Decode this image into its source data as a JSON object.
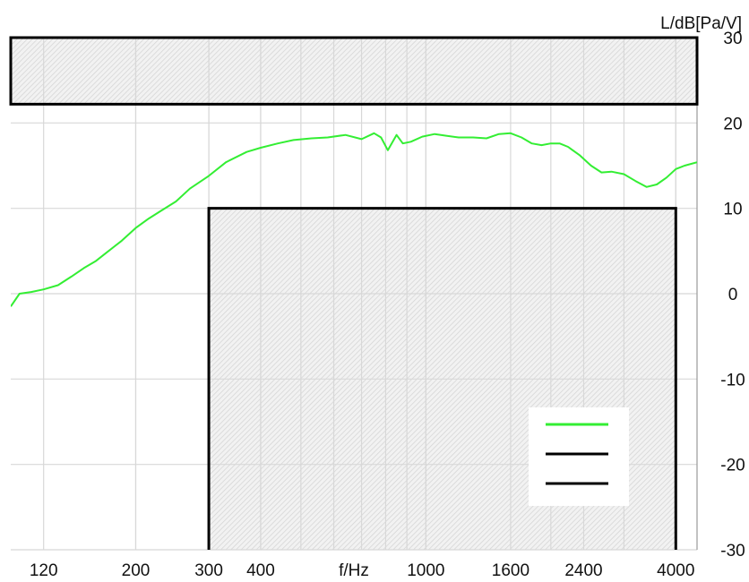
{
  "chart_data": {
    "type": "line",
    "ylabel": "L/dB[Pa/V]",
    "xlabel": "f/Hz",
    "x_scale": "log",
    "xlim": [
      100,
      4500
    ],
    "ylim": [
      -30,
      30
    ],
    "x_ticks": [
      {
        "value": 120,
        "label": "120"
      },
      {
        "value": 200,
        "label": "200"
      },
      {
        "value": 300,
        "label": "300"
      },
      {
        "value": 400,
        "label": "400"
      },
      {
        "value": 1000,
        "label": "1000"
      },
      {
        "value": 1600,
        "label": "1600"
      },
      {
        "value": 2400,
        "label": "2400"
      },
      {
        "value": 4000,
        "label": "4000"
      }
    ],
    "y_ticks": [
      30,
      20,
      10,
      0,
      -10,
      -20,
      -30
    ],
    "grid": true,
    "series": [
      {
        "color": "#33ee33",
        "x": [
          100,
          105,
          112,
          120,
          130,
          140,
          150,
          160,
          170,
          185,
          200,
          215,
          230,
          250,
          270,
          300,
          330,
          370,
          400,
          440,
          480,
          530,
          580,
          640,
          700,
          750,
          780,
          810,
          850,
          880,
          920,
          980,
          1050,
          1120,
          1200,
          1300,
          1400,
          1500,
          1600,
          1700,
          1800,
          1900,
          2000,
          2100,
          2200,
          2350,
          2500,
          2650,
          2800,
          3000,
          3200,
          3400,
          3600,
          3800,
          4000,
          4200,
          4500
        ],
        "y": [
          -1.5,
          0.0,
          0.2,
          0.5,
          1.0,
          2.0,
          3.0,
          3.8,
          4.8,
          6.2,
          7.7,
          8.8,
          9.7,
          10.8,
          12.3,
          13.8,
          15.4,
          16.6,
          17.1,
          17.6,
          18.0,
          18.2,
          18.3,
          18.6,
          18.1,
          18.8,
          18.3,
          16.8,
          18.6,
          17.6,
          17.8,
          18.4,
          18.7,
          18.5,
          18.3,
          18.3,
          18.2,
          18.7,
          18.8,
          18.3,
          17.6,
          17.4,
          17.6,
          17.6,
          17.2,
          16.2,
          15.0,
          14.2,
          14.3,
          14.0,
          13.2,
          12.5,
          12.8,
          13.6,
          14.6,
          15.0,
          15.4
        ]
      }
    ],
    "tolerance_boxes": [
      {
        "x_range": [
          100,
          4500
        ],
        "y_range": [
          22.2,
          30
        ]
      },
      {
        "x_range": [
          300,
          4000
        ],
        "y_range": [
          -30,
          10
        ]
      }
    ],
    "legend": {
      "placement": "bottom-right",
      "entries": [
        {
          "color": "#33ee33"
        },
        {
          "color": "#000000"
        },
        {
          "color": "#000000"
        }
      ]
    }
  }
}
